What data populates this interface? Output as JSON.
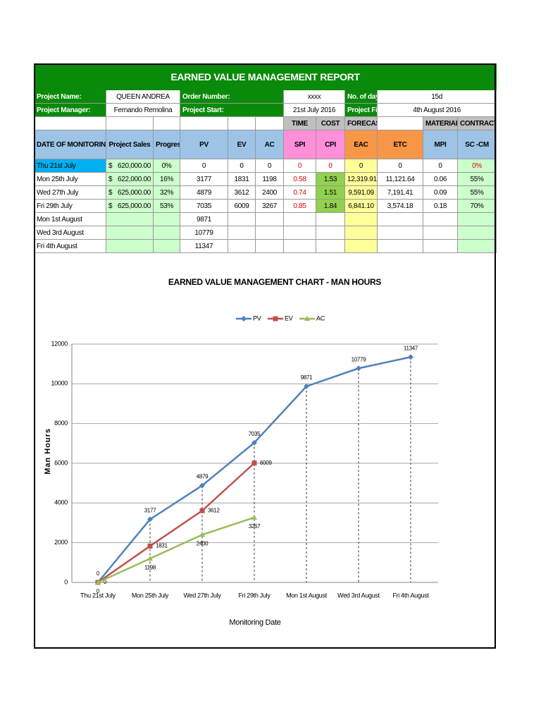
{
  "report": {
    "title": "EARNED VALUE MANAGEMENT REPORT",
    "info": [
      [
        "Project Name:",
        "QUEEN ANDREA",
        "Order Number:",
        "xxxx",
        "No. of days:",
        "15d"
      ],
      [
        "Project Manager:",
        "Fernando Remolina",
        "Project Start:",
        "21st July 2016",
        "Project Finish:",
        "4th August 2016"
      ]
    ],
    "groups": [
      null,
      null,
      null,
      null,
      null,
      null,
      "TIME",
      "COST",
      "FORECAST",
      null,
      "MATERIAL",
      "CONTRACTOR"
    ],
    "headers": [
      "DATE OF MONITORING",
      "Project Sales",
      "Progress",
      "PV",
      "EV",
      "AC",
      "SPI",
      "CPI",
      "EAC",
      "ETC",
      "MPI",
      "SC -CM"
    ],
    "rows": [
      [
        "Thu 21st July",
        "$",
        "620,000.00",
        "0%",
        "0",
        "0",
        "0",
        "0",
        "0",
        "0",
        "0",
        "0",
        "0%"
      ],
      [
        "Mon 25th July",
        "$",
        "622,000.00",
        "16%",
        "3177",
        "1831",
        "1198",
        "0.58",
        "1.53",
        "12,319.91",
        "11,121.64",
        "0.06",
        "55%"
      ],
      [
        "Wed 27th July",
        "$",
        "625,000.00",
        "32%",
        "4879",
        "3612",
        "2400",
        "0.74",
        "1.51",
        "9,591.09",
        "7,191.41",
        "0.09",
        "55%"
      ],
      [
        "Fri 29th July",
        "$",
        "625,000.00",
        "53%",
        "7035",
        "6009",
        "3267",
        "0.85",
        "1.84",
        "6,841.10",
        "3,574.18",
        "0.18",
        "70%"
      ],
      [
        "Mon 1st August",
        null,
        null,
        null,
        "9871",
        null,
        null,
        null,
        null,
        null,
        null,
        null,
        null
      ],
      [
        "Wed 3rd August",
        null,
        null,
        null,
        "10779",
        null,
        null,
        null,
        null,
        null,
        null,
        null,
        null
      ],
      [
        "Fri 4th August",
        null,
        null,
        null,
        "11347",
        null,
        null,
        null,
        null,
        null,
        null,
        null,
        null
      ]
    ]
  },
  "chart_data": {
    "type": "line",
    "title": "EARNED VALUE MANAGEMENT CHART - MAN HOURS",
    "x_label": "Monitoring Date",
    "y_label": "Man Hours",
    "categories": [
      "Thu 21st July",
      "Mon 25th July",
      "Wed 27th July",
      "Fri 29th July",
      "Mon 1st August",
      "Wed 3rd August",
      "Fri 4th August"
    ],
    "series": [
      {
        "name": "PV",
        "color": "#4f81bd",
        "marker": "diamond",
        "values": [
          0,
          3177,
          4879,
          7035,
          9871,
          10779,
          11347
        ]
      },
      {
        "name": "EV",
        "color": "#c0504d",
        "marker": "square",
        "values": [
          0,
          1831,
          3612,
          6009,
          null,
          null,
          null
        ]
      },
      {
        "name": "AC",
        "color": "#9bbb59",
        "marker": "triangle",
        "values": [
          0,
          1198,
          2400,
          3267,
          null,
          null,
          null
        ]
      }
    ],
    "ylim": [
      0,
      12000
    ],
    "yticks": [
      0,
      2000,
      4000,
      6000,
      8000,
      10000,
      12000
    ],
    "grid": true,
    "legend": "top",
    "data_labels": true
  }
}
